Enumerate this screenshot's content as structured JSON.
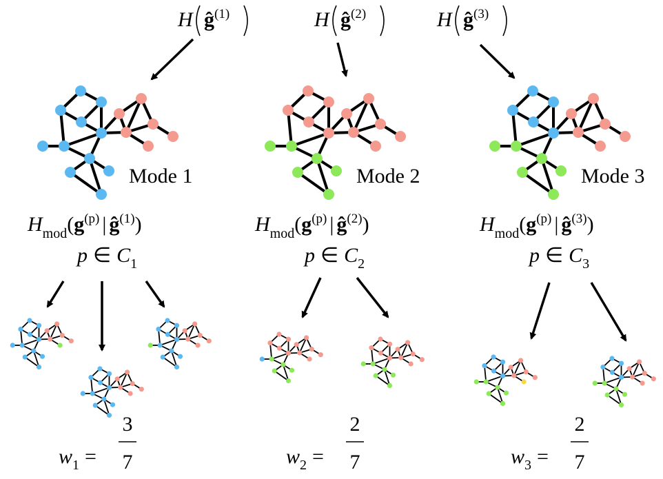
{
  "modes": [
    {
      "top": {
        "fn": "H",
        "arg": "ĝ",
        "sup": "(1)"
      },
      "label": "Mode 1",
      "mod": {
        "fn": "H",
        "sub": "mod",
        "open": "(",
        "arg": "g",
        "argsup": "(p)",
        "sep": "|",
        "cond": "ĝ",
        "condsup": "(1)",
        "close": ")"
      },
      "cluster": {
        "var": "p",
        "rel": "∈",
        "set": "C",
        "sub": "1"
      },
      "weight": {
        "var": "w",
        "sub": "1",
        "eq": "=",
        "num": "3",
        "den": "7"
      }
    },
    {
      "top": {
        "fn": "H",
        "arg": "ĝ",
        "sup": "(2)"
      },
      "label": "Mode 2",
      "mod": {
        "fn": "H",
        "sub": "mod",
        "open": "(",
        "arg": "g",
        "argsup": "(p)",
        "sep": "|",
        "cond": "ĝ",
        "condsup": "(2)",
        "close": ")"
      },
      "cluster": {
        "var": "p",
        "rel": "∈",
        "set": "C",
        "sub": "2"
      },
      "weight": {
        "var": "w",
        "sub": "2",
        "eq": "=",
        "num": "2",
        "den": "7"
      }
    },
    {
      "top": {
        "fn": "H",
        "arg": "ĝ",
        "sup": "(3)"
      },
      "label": "Mode 3",
      "mod": {
        "fn": "H",
        "sub": "mod",
        "open": "(",
        "arg": "g",
        "argsup": "(p)",
        "sep": "|",
        "cond": "ĝ",
        "condsup": "(3)",
        "close": ")"
      },
      "cluster": {
        "var": "p",
        "rel": "∈",
        "set": "C",
        "sub": "3"
      },
      "weight": {
        "var": "w",
        "sub": "3",
        "eq": "=",
        "num": "2",
        "den": "7"
      }
    }
  ]
}
